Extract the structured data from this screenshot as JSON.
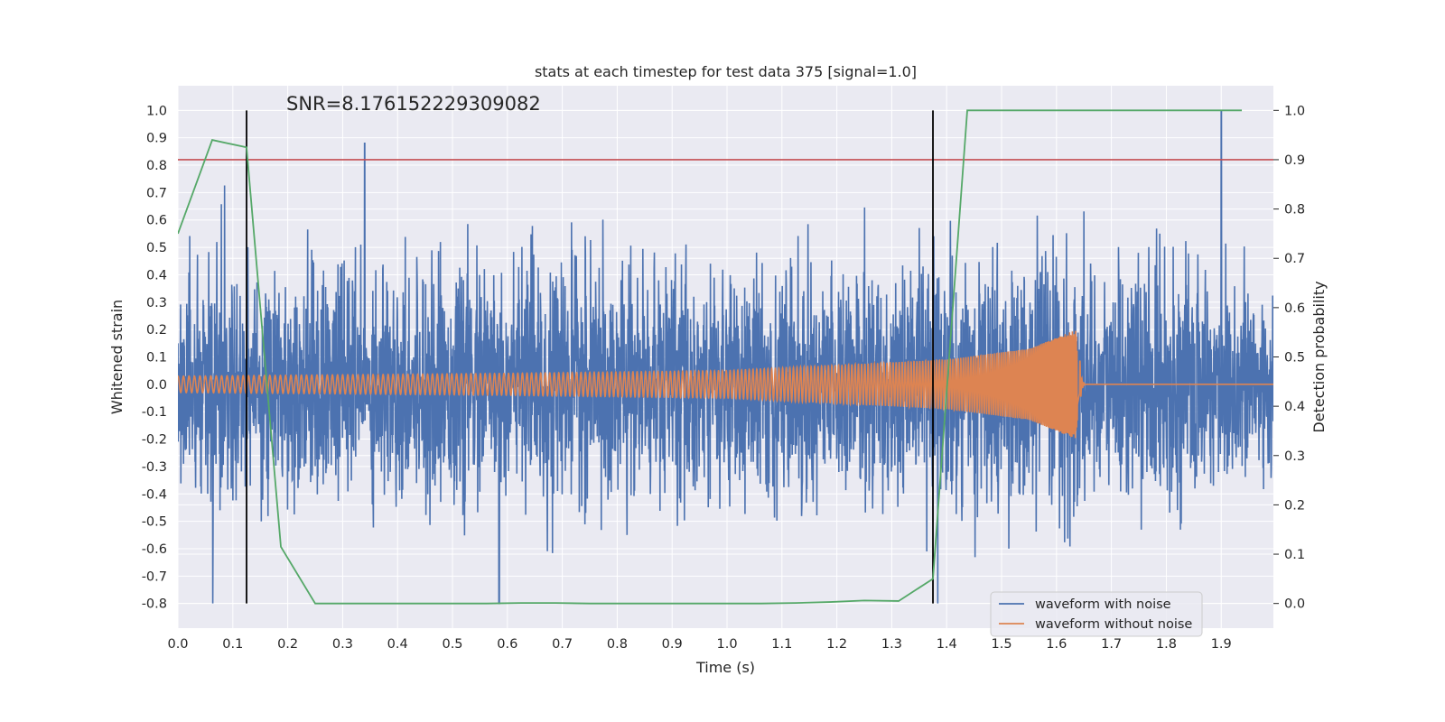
{
  "chart_data": {
    "type": "line",
    "title": "stats at each timestep for test data 375 [signal=1.0]",
    "xlabel": "Time (s)",
    "ylabel_left": "Whitened strain",
    "ylabel_right": "Detection probability",
    "annotation": "SNR=8.176152229309082",
    "xlim": [
      0.0,
      1.995
    ],
    "ylim_left": [
      -0.89,
      1.09
    ],
    "ylim_right": [
      -0.05,
      1.05
    ],
    "x_ticks": [
      "0.0",
      "0.1",
      "0.2",
      "0.3",
      "0.4",
      "0.5",
      "0.6",
      "0.7",
      "0.8",
      "0.9",
      "1.0",
      "1.1",
      "1.2",
      "1.3",
      "1.4",
      "1.5",
      "1.6",
      "1.7",
      "1.8",
      "1.9"
    ],
    "y_ticks_left": [
      "-0.8",
      "-0.7",
      "-0.6",
      "-0.5",
      "-0.4",
      "-0.3",
      "-0.2",
      "-0.1",
      "0.0",
      "0.1",
      "0.2",
      "0.3",
      "0.4",
      "0.5",
      "0.6",
      "0.7",
      "0.8",
      "0.9",
      "1.0"
    ],
    "y_ticks_right": [
      "0.0",
      "0.1",
      "0.2",
      "0.3",
      "0.4",
      "0.5",
      "0.6",
      "0.7",
      "0.8",
      "0.9",
      "1.0"
    ],
    "grid": true,
    "legend_placement": "lower-right",
    "colors": {
      "noise": "#4c72b0",
      "clean": "#dd8452",
      "probability": "#55a868",
      "threshold": "#c44e52",
      "markers": "#000000",
      "axes_bg": "#eaeaf2",
      "grid": "#ffffff"
    },
    "series": [
      {
        "name": "waveform with noise",
        "axis": "left",
        "color": "#4c72b0",
        "sample_rate_hz": 2048,
        "amplitude_envelope": [
          -0.8,
          1.0
        ],
        "notable_peaks": [
          {
            "x": 0.34,
            "y": 0.88
          },
          {
            "x": 0.585,
            "y": -0.8
          },
          {
            "x": 1.9,
            "y": 1.0
          }
        ]
      },
      {
        "name": "waveform without noise",
        "axis": "left",
        "color": "#dd8452",
        "description_points": [
          {
            "x": 0.0,
            "amplitude": 0.03
          },
          {
            "x": 0.6,
            "amplitude": 0.04
          },
          {
            "x": 1.0,
            "amplitude": 0.05
          },
          {
            "x": 1.4,
            "amplitude": 0.09
          },
          {
            "x": 1.55,
            "amplitude": 0.13
          },
          {
            "x": 1.6,
            "amplitude": 0.17
          },
          {
            "x": 1.635,
            "amplitude": 0.2
          },
          {
            "x": 1.645,
            "amplitude": 0.0
          },
          {
            "x": 1.995,
            "amplitude": 0.0
          }
        ]
      },
      {
        "name": "",
        "axis": "right",
        "color": "#55a868",
        "x": [
          0.0,
          0.0625,
          0.125,
          0.1875,
          0.25,
          0.3125,
          0.375,
          0.4375,
          0.5,
          0.5625,
          0.625,
          0.6875,
          0.75,
          0.8125,
          0.875,
          0.9375,
          1.0,
          1.0625,
          1.125,
          1.1875,
          1.25,
          1.3125,
          1.375,
          1.4375,
          1.5,
          1.5625,
          1.625,
          1.6875,
          1.75,
          1.8125,
          1.875,
          1.9375
        ],
        "y": [
          0.75,
          0.94,
          0.925,
          0.115,
          0.0,
          0.0,
          0.0,
          0.0,
          0.0,
          0.0,
          0.001,
          0.001,
          0.0,
          0.0,
          0.0,
          0.0,
          0.0,
          0.0,
          0.001,
          0.003,
          0.006,
          0.005,
          0.05,
          1.0,
          1.0,
          1.0,
          1.0,
          1.0,
          1.0,
          1.0,
          1.0,
          1.0
        ]
      }
    ],
    "threshold_line": {
      "axis": "right",
      "y": 0.9
    },
    "vertical_markers": [
      {
        "x": 0.125,
        "y_from": -0.8,
        "y_to": 1.0
      },
      {
        "x": 1.375,
        "y_from": -0.8,
        "y_to": 1.0
      }
    ],
    "legend": [
      "waveform with noise",
      "waveform without noise"
    ]
  }
}
